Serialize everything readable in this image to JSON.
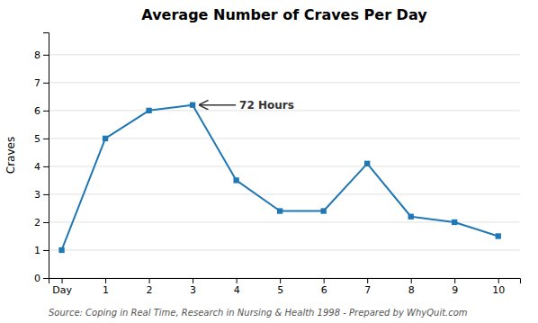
{
  "chart_data": {
    "type": "line",
    "title": "Average Number of Craves Per Day",
    "y_label": "Craves",
    "source": "Source:  Coping in Real Time, Research in Nursing & Health 1998 - Prepared by WhyQuit.com",
    "x": [
      0,
      1,
      2,
      3,
      4,
      5,
      6,
      7,
      8,
      9,
      10
    ],
    "values": [
      1,
      5,
      6,
      6.2,
      3.5,
      2.4,
      2.4,
      4.1,
      2.2,
      2.0,
      1.5
    ],
    "xlim": [
      -0.3,
      10.5
    ],
    "xticks": [
      {
        "value": 0,
        "label": "Day"
      },
      1,
      2,
      3,
      4,
      5,
      6,
      7,
      8,
      9,
      10
    ],
    "ylim": [
      0,
      8.8
    ],
    "yticks": [
      0,
      1,
      2,
      3,
      4,
      5,
      6,
      7,
      8
    ],
    "grid": true,
    "marker": "square",
    "annotations": [
      {
        "text": "72 Hours",
        "x": 3.0,
        "y": 6.2
      }
    ]
  }
}
